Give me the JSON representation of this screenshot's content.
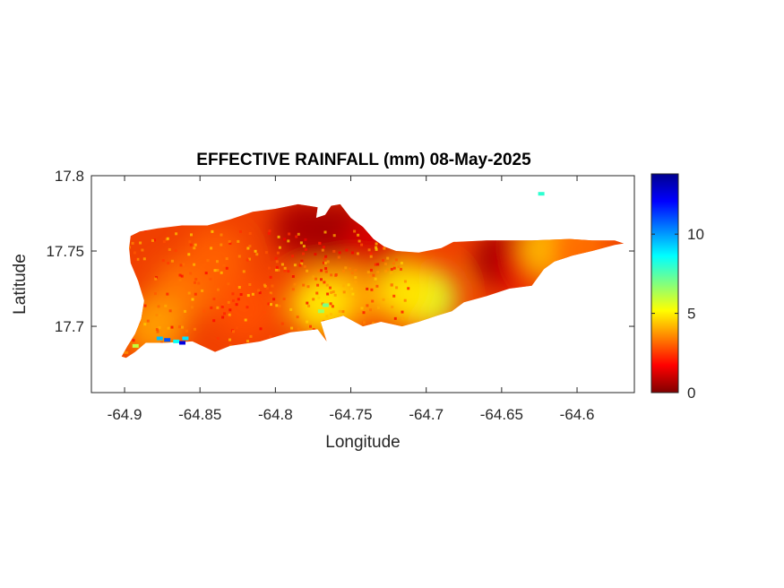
{
  "figure": {
    "title": "EFFECTIVE RAINFALL (mm) 08-May-2025",
    "xlabel": "Longitude",
    "ylabel": "Latitude"
  },
  "chart_data": {
    "type": "heatmap",
    "title": "EFFECTIVE RAINFALL (mm) 08-May-2025",
    "xlabel": "Longitude",
    "ylabel": "Latitude",
    "xlim": [
      -64.922,
      -64.562
    ],
    "ylim": [
      17.656,
      17.8
    ],
    "x_ticks": [
      -64.9,
      -64.85,
      -64.8,
      -64.75,
      -64.7,
      -64.65,
      -64.6
    ],
    "x_tick_labels": [
      "-64.9",
      "-64.85",
      "-64.8",
      "-64.75",
      "-64.7",
      "-64.65",
      "-64.6"
    ],
    "y_ticks": [
      17.7,
      17.75,
      17.8
    ],
    "y_tick_labels": [
      "17.7",
      "17.75",
      "17.8"
    ],
    "colorbar": {
      "colormap": "jet",
      "range": [
        0,
        13.8
      ],
      "ticks": [
        0,
        5,
        10
      ],
      "tick_labels": [
        "0",
        "5",
        "10"
      ]
    },
    "colormap_stops": [
      "#800000",
      "#ff0000",
      "#ff8000",
      "#ffff00",
      "#80ff80",
      "#00ffff",
      "#0080ff",
      "#0000ff",
      "#00008f"
    ],
    "region_outline": [
      [
        -64.899,
        17.679
      ],
      [
        -64.893,
        17.683
      ],
      [
        -64.886,
        17.689
      ],
      [
        -64.875,
        17.689
      ],
      [
        -64.855,
        17.69
      ],
      [
        -64.84,
        17.683
      ],
      [
        -64.83,
        17.687
      ],
      [
        -64.81,
        17.69
      ],
      [
        -64.79,
        17.696
      ],
      [
        -64.772,
        17.698
      ],
      [
        -64.766,
        17.69
      ],
      [
        -64.77,
        17.703
      ],
      [
        -64.755,
        17.707
      ],
      [
        -64.742,
        17.7
      ],
      [
        -64.73,
        17.703
      ],
      [
        -64.716,
        17.7
      ],
      [
        -64.705,
        17.703
      ],
      [
        -64.693,
        17.707
      ],
      [
        -64.683,
        17.71
      ],
      [
        -64.675,
        17.716
      ],
      [
        -64.66,
        17.72
      ],
      [
        -64.645,
        17.725
      ],
      [
        -64.63,
        17.727
      ],
      [
        -64.622,
        17.738
      ],
      [
        -64.615,
        17.743
      ],
      [
        -64.603,
        17.747
      ],
      [
        -64.59,
        17.75
      ],
      [
        -64.575,
        17.754
      ],
      [
        -64.569,
        17.755
      ],
      [
        -64.575,
        17.757
      ],
      [
        -64.59,
        17.757
      ],
      [
        -64.605,
        17.758
      ],
      [
        -64.63,
        17.757
      ],
      [
        -64.66,
        17.757
      ],
      [
        -64.682,
        17.756
      ],
      [
        -64.69,
        17.752
      ],
      [
        -64.705,
        17.749
      ],
      [
        -64.72,
        17.75
      ],
      [
        -64.728,
        17.753
      ],
      [
        -64.735,
        17.758
      ],
      [
        -64.742,
        17.766
      ],
      [
        -64.75,
        17.772
      ],
      [
        -64.757,
        17.781
      ],
      [
        -64.763,
        17.78
      ],
      [
        -64.767,
        17.774
      ],
      [
        -64.773,
        17.772
      ],
      [
        -64.772,
        17.779
      ],
      [
        -64.778,
        17.78
      ],
      [
        -64.785,
        17.781
      ],
      [
        -64.8,
        17.778
      ],
      [
        -64.815,
        17.776
      ],
      [
        -64.83,
        17.771
      ],
      [
        -64.845,
        17.767
      ],
      [
        -64.862,
        17.767
      ],
      [
        -64.878,
        17.765
      ],
      [
        -64.89,
        17.763
      ],
      [
        -64.896,
        17.76
      ],
      [
        -64.897,
        17.752
      ],
      [
        -64.896,
        17.742
      ],
      [
        -64.891,
        17.73
      ],
      [
        -64.887,
        17.717
      ],
      [
        -64.889,
        17.705
      ],
      [
        -64.893,
        17.695
      ],
      [
        -64.898,
        17.687
      ],
      [
        -64.902,
        17.68
      ]
    ],
    "hotspots": [
      {
        "x": -64.782,
        "y": 17.765,
        "value": 0.6
      },
      {
        "x": -64.757,
        "y": 17.764,
        "value": 0.5
      },
      {
        "x": -64.735,
        "y": 17.752,
        "value": 1.2
      },
      {
        "x": -64.648,
        "y": 17.745,
        "value": 0.4
      },
      {
        "x": -64.63,
        "y": 17.742,
        "value": 1.5
      },
      {
        "x": -64.7,
        "y": 17.719,
        "value": 5.8
      },
      {
        "x": -64.712,
        "y": 17.722,
        "value": 4.8
      },
      {
        "x": -64.615,
        "y": 17.752,
        "value": 4.5
      },
      {
        "x": -64.6,
        "y": 17.754,
        "value": 3.6
      },
      {
        "x": -64.6,
        "y": 17.748,
        "value": 3.2
      },
      {
        "x": -64.86,
        "y": 17.725,
        "value": 3.3
      },
      {
        "x": -64.82,
        "y": 17.712,
        "value": 2.8
      },
      {
        "x": -64.84,
        "y": 17.745,
        "value": 3.0
      },
      {
        "x": -64.75,
        "y": 17.72,
        "value": 3.8
      },
      {
        "x": -64.77,
        "y": 17.715,
        "value": 4.8
      },
      {
        "x": -64.88,
        "y": 17.7,
        "value": 3.8
      }
    ],
    "speckles": [
      {
        "x": -64.767,
        "y": 17.714,
        "value": 7.0
      },
      {
        "x": -64.77,
        "y": 17.71,
        "value": 6.5
      },
      {
        "x": -64.877,
        "y": 17.692,
        "value": 9.5
      },
      {
        "x": -64.872,
        "y": 17.691,
        "value": 11.0
      },
      {
        "x": -64.866,
        "y": 17.69,
        "value": 8.5
      },
      {
        "x": -64.86,
        "y": 17.692,
        "value": 9.0
      },
      {
        "x": -64.862,
        "y": 17.689,
        "value": 12.5
      },
      {
        "x": -64.624,
        "y": 17.788,
        "value": 8.0
      },
      {
        "x": -64.893,
        "y": 17.687,
        "value": 6.0
      }
    ]
  }
}
